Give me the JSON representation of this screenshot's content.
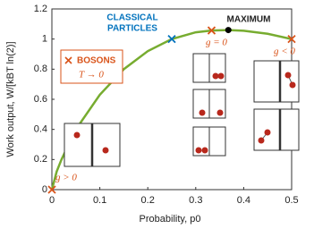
{
  "chart_data": {
    "type": "line",
    "xlabel": "Probability,  p0",
    "ylabel": "Work output,  W/[kBT ln(2)]",
    "xlim": [
      0,
      0.5
    ],
    "xticks": [
      0,
      0.1,
      0.2,
      0.3,
      0.4,
      0.5
    ],
    "ylim": [
      0,
      1.2
    ],
    "yticks": [
      0,
      0.2,
      0.4,
      0.6,
      0.8,
      1,
      1.2
    ],
    "series": [
      {
        "color": "#77ac30",
        "marker": "none",
        "x": [
          0,
          0.01,
          0.02,
          0.05,
          0.1,
          0.15,
          0.2,
          0.25,
          0.3,
          0.333,
          0.368,
          0.4,
          0.45,
          0.5
        ],
        "values": [
          0,
          0.12,
          0.2,
          0.4,
          0.63,
          0.8,
          0.92,
          1.0,
          1.045,
          1.057,
          1.06,
          1.055,
          1.035,
          1.0
        ]
      },
      {
        "color": "#d95319",
        "marker": "x",
        "x": [
          0,
          0.333,
          0.5
        ],
        "values": [
          0,
          1.057,
          1.0
        ]
      },
      {
        "color": "#0072bd",
        "marker": "x",
        "x": [
          0.25
        ],
        "values": [
          1.0
        ]
      },
      {
        "color": "#000000",
        "marker": "o",
        "x": [
          0.368
        ],
        "values": [
          1.06
        ]
      }
    ],
    "annotations": [
      "CLASSICAL",
      "PARTICLES",
      "MAXIMUM",
      "BOSONS",
      "T → 0",
      "g > 0",
      "g = 0",
      "g < 0"
    ]
  }
}
